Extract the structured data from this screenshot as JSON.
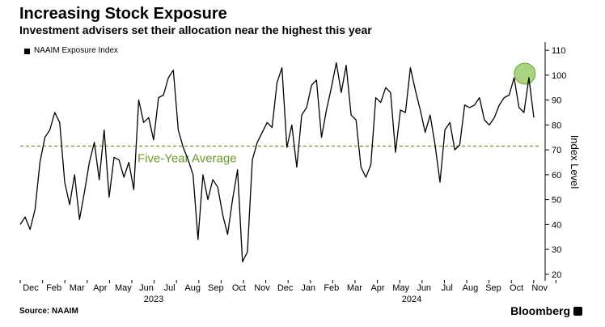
{
  "header": {
    "title": "Increasing Stock Exposure",
    "subtitle": "Investment advisers set their allocation near the highest this year"
  },
  "legend": {
    "items": [
      {
        "label": "NAAIM Exposure Index",
        "color": "#000000"
      }
    ]
  },
  "footer": {
    "source": "Source: NAAIM",
    "brand": "Bloomberg"
  },
  "chart_data": {
    "type": "line",
    "y_axis_label": "Index Level",
    "y_ticks": [
      20,
      30,
      40,
      50,
      60,
      70,
      80,
      90,
      100,
      110
    ],
    "ylim": [
      18,
      112
    ],
    "grid": false,
    "legend_position": "top-left",
    "month_labels": [
      "Dec",
      "Feb",
      "Mar",
      "Apr",
      "May",
      "Jun",
      "Jul",
      "Aug",
      "Sep",
      "Oct",
      "Nov",
      "Dec",
      "Jan",
      "Feb",
      "Mar",
      "Apr",
      "May",
      "Jun",
      "Jul",
      "Aug",
      "Sep",
      "Oct",
      "Nov"
    ],
    "year_labels": [
      "2023",
      "2024"
    ],
    "reference_line": {
      "label": "Five-Year Average",
      "value": 71.5,
      "color": "#6a9a2a"
    },
    "highlight": {
      "index": 103,
      "value": 99,
      "color": "#8cc45a"
    },
    "series": [
      {
        "name": "NAAIM Exposure Index",
        "color": "#000000",
        "values": [
          40,
          43,
          38,
          46,
          65,
          75,
          78,
          85,
          81,
          57,
          48,
          60,
          42,
          53,
          65,
          73,
          58,
          78,
          51,
          67,
          66,
          59,
          65,
          54,
          90,
          81,
          83,
          74,
          91,
          92,
          99,
          102,
          78,
          71,
          66,
          60,
          34,
          60,
          50,
          58,
          55,
          44,
          36,
          50,
          62,
          25,
          29,
          66,
          73,
          77,
          81,
          79,
          97,
          103,
          71,
          80,
          63,
          84,
          87,
          96,
          98,
          75,
          86,
          95,
          105,
          93,
          104,
          84,
          82,
          63,
          59,
          64,
          91,
          89,
          95,
          93,
          69,
          86,
          85,
          103,
          94,
          86,
          77,
          84,
          72,
          57,
          78,
          81,
          70,
          72,
          88,
          87,
          88,
          91,
          82,
          80,
          83,
          88,
          91,
          92,
          99,
          87,
          85,
          99,
          83
        ]
      }
    ]
  }
}
